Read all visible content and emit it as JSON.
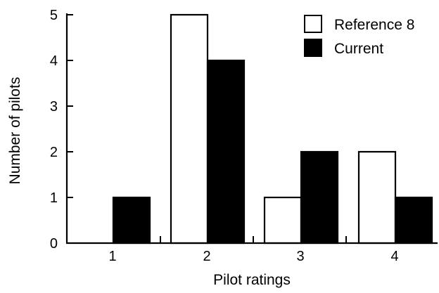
{
  "chart_data": {
    "type": "bar",
    "title": "",
    "xlabel": "Pilot ratings",
    "ylabel": "Number of pilots",
    "categories": [
      "1",
      "2",
      "3",
      "4"
    ],
    "series": [
      {
        "name": "Reference 8",
        "values": [
          0,
          5,
          1,
          2
        ],
        "fill": "#ffffff"
      },
      {
        "name": "Current",
        "values": [
          1,
          4,
          2,
          1
        ],
        "fill": "#000000"
      }
    ],
    "ylim": [
      0,
      5
    ],
    "yticks": [
      "0",
      "1",
      "2",
      "3",
      "4",
      "5"
    ],
    "grid": false,
    "legend": "top-right"
  }
}
